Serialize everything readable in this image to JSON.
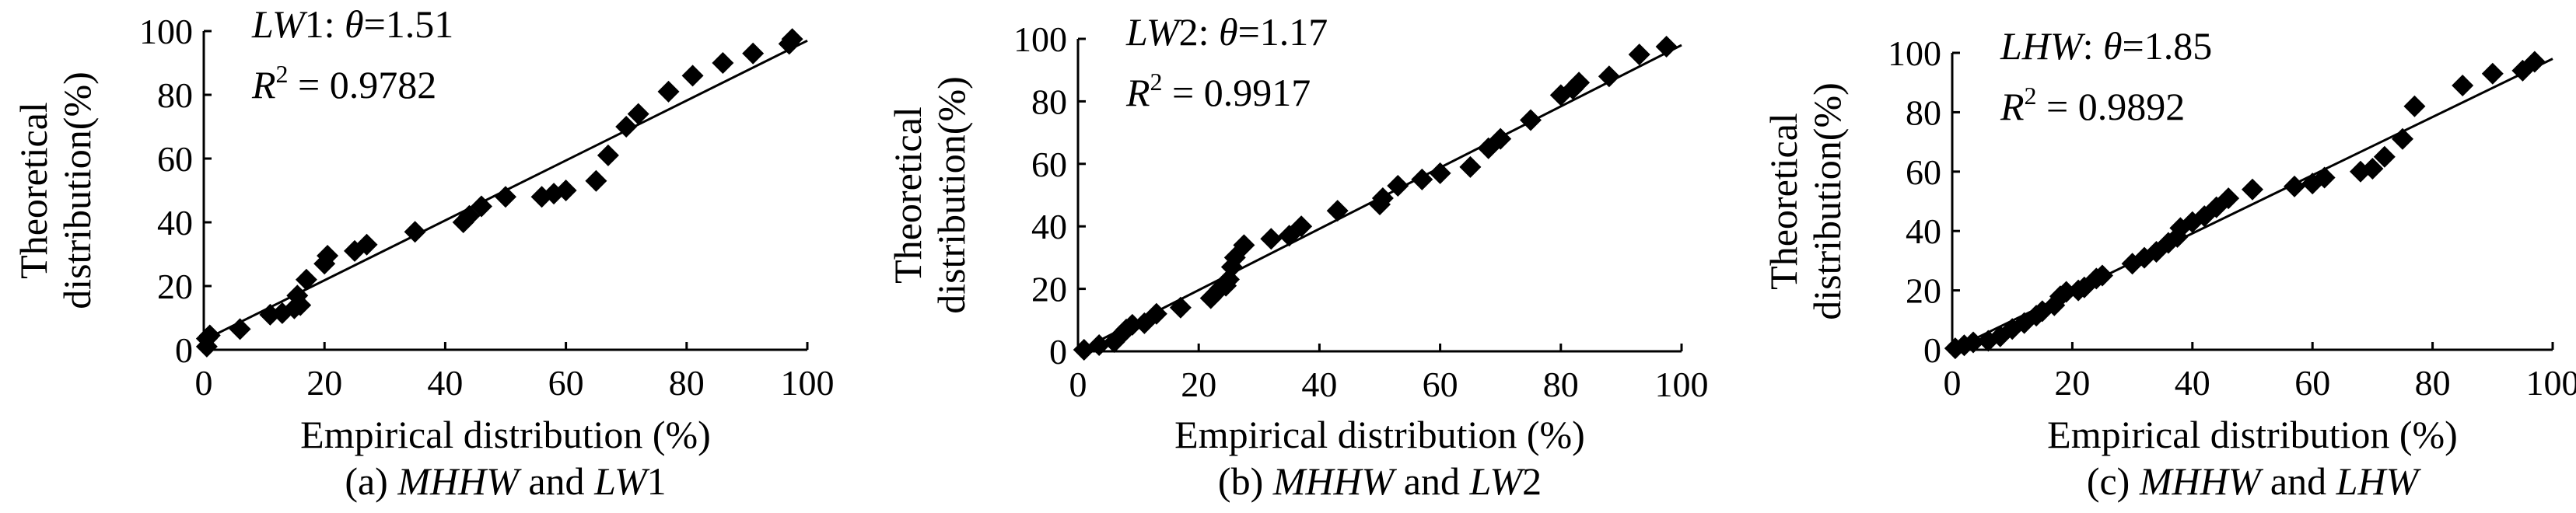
{
  "chart_data": [
    {
      "type": "scatter",
      "panel": "a",
      "caption": "(a) MHHW and LW1",
      "caption_parts": {
        "label": "(a) ",
        "var1": "MHHW",
        "and": " and ",
        "var2_italic": "LW",
        "var2_plain": "1"
      },
      "annotation": {
        "series_italic": "LW",
        "series_plain": "1",
        "theta": "1.51",
        "r2": "0.9782"
      },
      "xlabel": "Empirical distribution (%)",
      "ylabel": [
        "Theoretical",
        "distribution(%)"
      ],
      "xlim": [
        0,
        100
      ],
      "ylim": [
        0,
        100
      ],
      "xticks": [
        0,
        20,
        40,
        60,
        80,
        100
      ],
      "yticks": [
        0,
        20,
        40,
        60,
        80,
        100
      ],
      "fit_line": [
        [
          0,
          3
        ],
        [
          100,
          97
        ]
      ],
      "x": [
        0.5,
        0.5,
        1,
        6,
        11,
        13,
        15,
        15.5,
        16,
        17,
        20,
        20.5,
        25,
        27,
        35,
        43,
        44,
        46,
        50,
        56,
        58,
        60,
        65,
        67,
        70,
        72,
        77,
        81,
        86,
        91,
        97,
        97.5
      ],
      "y": [
        1,
        3.5,
        4.5,
        6.5,
        11,
        11.5,
        13,
        17,
        14,
        22,
        27,
        29.5,
        31,
        33,
        37,
        40,
        42,
        45,
        48,
        48,
        49,
        50,
        53,
        61,
        70,
        74,
        81,
        86,
        90,
        93,
        96,
        97.5
      ]
    },
    {
      "type": "scatter",
      "panel": "b",
      "caption": "(b) MHHW and LW2",
      "caption_parts": {
        "label": "(b) ",
        "var1": "MHHW",
        "and": " and ",
        "var2_italic": "LW",
        "var2_plain": "2"
      },
      "annotation": {
        "series_italic": "LW",
        "series_plain": "2",
        "theta": "1.17",
        "r2": "0.9917"
      },
      "xlabel": "Empirical distribution (%)",
      "ylabel": [
        "Theoretical",
        "distribution(%)"
      ],
      "xlim": [
        0,
        100
      ],
      "ylim": [
        0,
        100
      ],
      "xticks": [
        0,
        20,
        40,
        60,
        80,
        100
      ],
      "yticks": [
        0,
        20,
        40,
        60,
        80,
        100
      ],
      "fit_line": [
        [
          0,
          0
        ],
        [
          100,
          98
        ]
      ],
      "x": [
        1,
        3.5,
        6,
        7,
        8,
        9,
        11,
        13,
        17,
        22,
        23.5,
        24.5,
        25,
        25.5,
        26,
        27.5,
        32,
        35,
        37,
        43,
        50,
        50.5,
        53,
        57,
        60,
        65,
        68,
        70,
        75,
        80,
        82,
        83,
        88,
        93,
        97.5
      ],
      "y": [
        0.5,
        2,
        3,
        5,
        7,
        8.5,
        9,
        12,
        14,
        17,
        20,
        21,
        23,
        27,
        30,
        34,
        36,
        37,
        40,
        45,
        47,
        49,
        53,
        55,
        57,
        59,
        65,
        68,
        74,
        82,
        84,
        86,
        88,
        95,
        97.5
      ]
    },
    {
      "type": "scatter",
      "panel": "c",
      "caption": "(c) MHHW and LHW",
      "caption_parts": {
        "label": "(c) ",
        "var1": "MHHW",
        "and": " and ",
        "var2_italic": "LHW",
        "var2_plain": ""
      },
      "annotation": {
        "series_italic": "LHW",
        "series_plain": "",
        "theta": "1.85",
        "r2": "0.9892"
      },
      "xlabel": "Empirical distribution (%)",
      "ylabel": [
        "Theoretical",
        "distribution(%)"
      ],
      "xlim": [
        0,
        100
      ],
      "ylim": [
        0,
        100
      ],
      "xticks": [
        0,
        20,
        40,
        60,
        80,
        100
      ],
      "yticks": [
        0,
        20,
        40,
        60,
        80,
        100
      ],
      "fit_line": [
        [
          0,
          0
        ],
        [
          100,
          98
        ]
      ],
      "x": [
        0.5,
        2,
        3.5,
        6,
        8,
        10,
        12,
        14,
        15,
        17,
        18,
        19,
        21,
        22,
        24,
        25,
        30,
        32,
        34,
        36,
        37.5,
        38,
        40,
        42,
        44,
        46,
        50,
        57,
        60,
        62,
        68,
        70,
        72,
        75,
        77,
        85,
        90,
        95,
        97
      ],
      "y": [
        0.5,
        1.5,
        2.5,
        3,
        4.5,
        7,
        9,
        11.5,
        13,
        15,
        18,
        19.5,
        20,
        21,
        24,
        25,
        29,
        31,
        33,
        36,
        38,
        41,
        43,
        45,
        48,
        51,
        54,
        55,
        56,
        58,
        60,
        61,
        65,
        71,
        82,
        89,
        93,
        94,
        97
      ]
    }
  ]
}
